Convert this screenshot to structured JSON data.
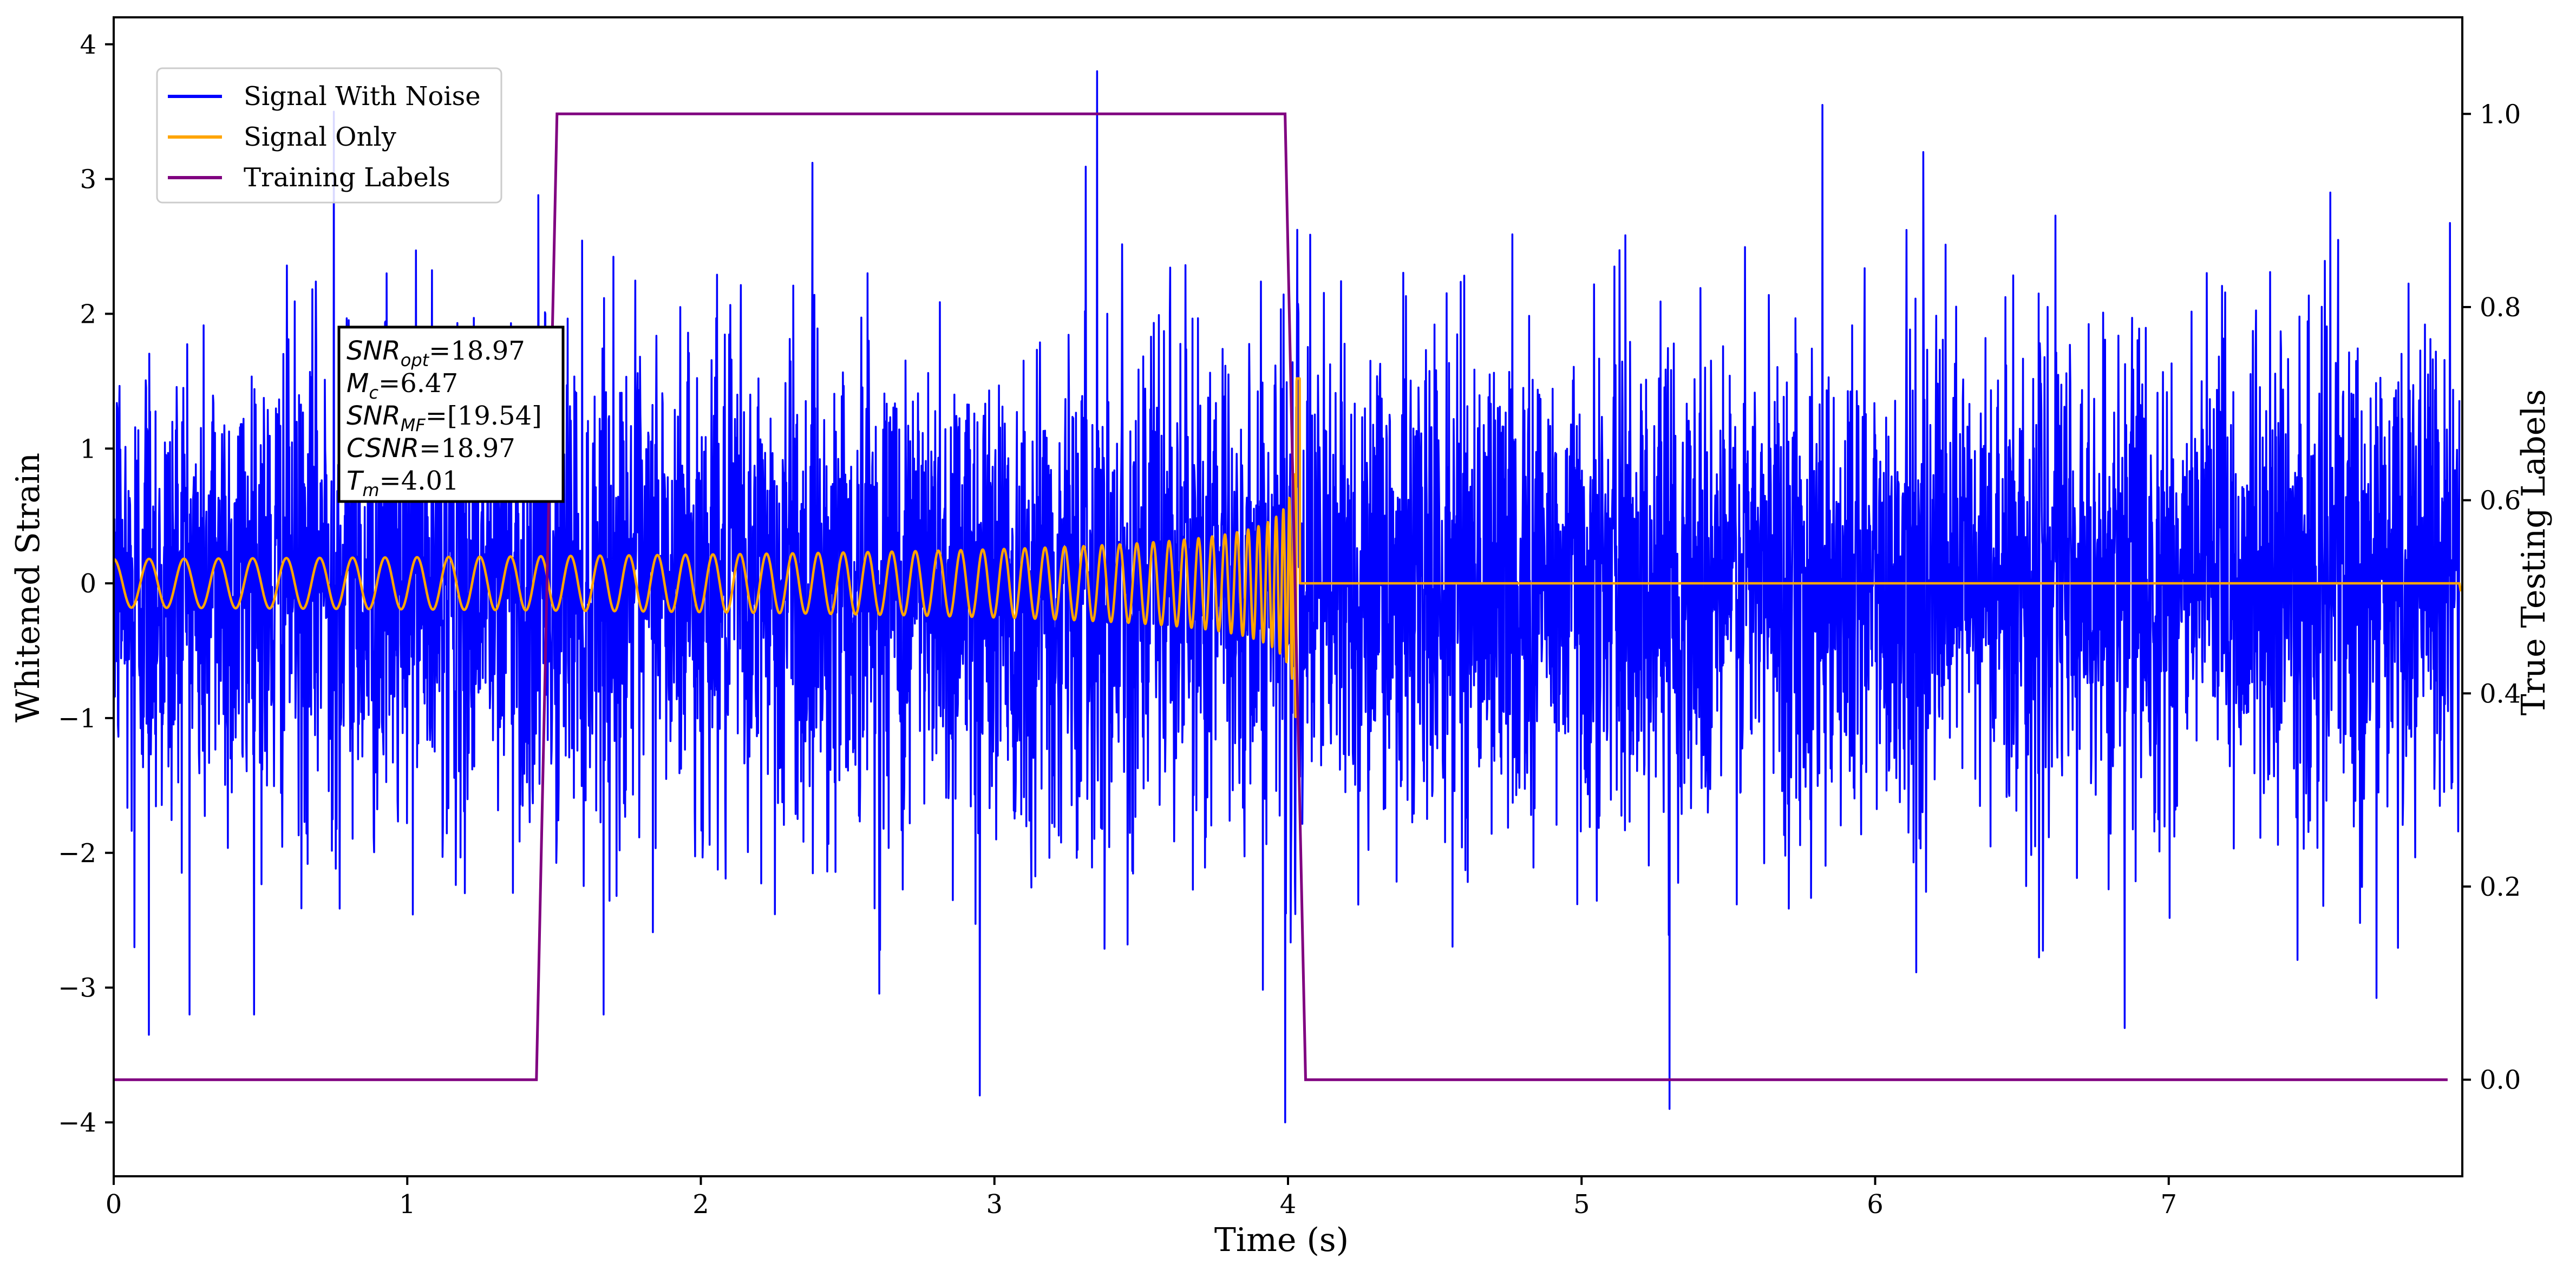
{
  "chart_data": {
    "type": "line",
    "xlabel": "Time (s)",
    "ylabel": "Whitened Strain",
    "y2label": "True Testing Labels",
    "xlim": [
      0,
      8.0
    ],
    "ylim": [
      -4.4,
      4.2
    ],
    "y2lim": [
      -0.1,
      1.1
    ],
    "xticks": [
      0,
      1,
      2,
      3,
      4,
      5,
      6,
      7
    ],
    "yticks": [
      -4,
      -3,
      -2,
      -1,
      0,
      1,
      2,
      3,
      4
    ],
    "y2ticks": [
      0.0,
      0.2,
      0.4,
      0.6,
      0.8,
      1.0
    ],
    "ytick_labels": [
      "−4",
      "−3",
      "−2",
      "−1",
      "0",
      "1",
      "2",
      "3",
      "4"
    ],
    "y2tick_labels": [
      "0.0",
      "0.2",
      "0.4",
      "0.6",
      "0.8",
      "1.0"
    ],
    "legend_placement": "upper-left",
    "grid": false,
    "series": [
      {
        "name": "Signal With Noise",
        "axis": "left",
        "color": "#0000ff",
        "x_range": [
          0,
          7.99
        ],
        "noise_std": 0.9,
        "notable_points": [
          [
            0.07,
            -2.7
          ],
          [
            0.12,
            -3.35
          ],
          [
            0.75,
            3.5
          ],
          [
            2.95,
            -3.8
          ],
          [
            3.35,
            3.8
          ],
          [
            3.99,
            -4.0
          ],
          [
            5.3,
            -3.9
          ],
          [
            5.82,
            3.55
          ],
          [
            6.85,
            -3.3
          ],
          [
            7.55,
            2.9
          ]
        ]
      },
      {
        "name": "Signal Only",
        "axis": "left",
        "color": "#ffa500",
        "chirp": {
          "start": 0.0,
          "merger": 4.01,
          "end": 7.99,
          "amp_start": 0.18,
          "amp_peak": 1.6,
          "after_merger": 0.0
        }
      },
      {
        "name": "Training Labels",
        "axis": "right",
        "color": "#800080",
        "x": [
          0.0,
          1.44,
          1.51,
          3.99,
          4.06,
          7.95
        ],
        "y": [
          0.0,
          0.0,
          1.0,
          1.0,
          0.0,
          0.0
        ]
      }
    ],
    "annotation": {
      "lines": [
        {
          "sym": "SNR",
          "sub": "opt",
          "value": "=18.97"
        },
        {
          "sym": "M",
          "sub": "c",
          "value": "=6.47"
        },
        {
          "sym": "SNR",
          "sub": "MF",
          "value": "=[19.54]"
        },
        {
          "sym": "CSNR",
          "sub": "",
          "value": "=18.97"
        },
        {
          "sym": "T",
          "sub": "m",
          "value": "=4.01"
        }
      ]
    }
  }
}
